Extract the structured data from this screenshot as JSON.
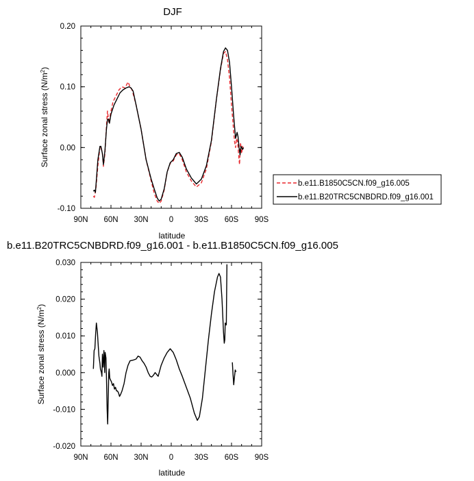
{
  "chart_data": [
    {
      "type": "line",
      "title": "DJF",
      "xlabel": "latitude",
      "ylabel": "Surface zonal stress (N/m",
      "ylabel_sup": "2",
      "ylabel_end": ")",
      "xlim": [
        90,
        -90
      ],
      "ylim": [
        -0.1,
        0.2
      ],
      "x_ticks": [
        90,
        60,
        30,
        0,
        -30,
        -60,
        -90
      ],
      "x_tick_labels": [
        "90N",
        "60N",
        "30N",
        "0",
        "30S",
        "60S",
        "90S"
      ],
      "y_ticks": [
        -0.1,
        0.0,
        0.1,
        0.2
      ],
      "y_tick_labels": [
        "-0.10",
        "0.00",
        "0.10",
        "0.20"
      ],
      "grid": false,
      "legend_position": "right",
      "series": [
        {
          "name": "b.e11.B1850C5CN.f09_g16.005",
          "color": "#e8262b",
          "dash": "dashed",
          "points": [
            [
              77.5,
              -0.08
            ],
            [
              76.5,
              -0.082
            ],
            [
              75,
              -0.068
            ],
            [
              73,
              -0.03
            ],
            [
              71,
              0
            ],
            [
              70,
              0.002
            ],
            [
              68.5,
              -0.01
            ],
            [
              67.5,
              -0.031
            ],
            [
              66,
              -0.01
            ],
            [
              64.5,
              0.035
            ],
            [
              63.5,
              0.06
            ],
            [
              62,
              0.04
            ],
            [
              60.5,
              0.056
            ],
            [
              58,
              0.075
            ],
            [
              55,
              0.085
            ],
            [
              52,
              0.095
            ],
            [
              49,
              0.1
            ],
            [
              46,
              0.098
            ],
            [
              43,
              0.108
            ],
            [
              41,
              0.1
            ],
            [
              39,
              0.095
            ],
            [
              35,
              0.07
            ],
            [
              30,
              0.03
            ],
            [
              25,
              -0.02
            ],
            [
              20,
              -0.055
            ],
            [
              17,
              -0.075
            ],
            [
              14,
              -0.088
            ],
            [
              12,
              -0.092
            ],
            [
              10,
              -0.088
            ],
            [
              7,
              -0.07
            ],
            [
              4,
              -0.04
            ],
            [
              1,
              -0.026
            ],
            [
              -2,
              -0.022
            ],
            [
              -5,
              -0.012
            ],
            [
              -8,
              -0.01
            ],
            [
              -11,
              -0.02
            ],
            [
              -15,
              -0.04
            ],
            [
              -20,
              -0.055
            ],
            [
              -25,
              -0.065
            ],
            [
              -30,
              -0.058
            ],
            [
              -35,
              -0.035
            ],
            [
              -40,
              0.01
            ],
            [
              -45,
              0.08
            ],
            [
              -49,
              0.128
            ],
            [
              -52,
              0.155
            ],
            [
              -54,
              0.158
            ],
            [
              -56,
              0.145
            ],
            [
              -58,
              0.115
            ],
            [
              -60,
              0.07
            ],
            [
              -62,
              0.03
            ],
            [
              -63,
              0.01
            ],
            [
              -64,
              0.0
            ],
            [
              -65,
              0.015
            ],
            [
              -66,
              0.01
            ],
            [
              -67.5,
              -0.02
            ],
            [
              -68,
              -0.028
            ],
            [
              -69,
              0.008
            ],
            [
              -70,
              -0.01
            ],
            [
              -71,
              0.002
            ],
            [
              -72,
              -0.005
            ]
          ]
        },
        {
          "name": "b.e11.B20TRC5CNBDRD.f09_g16.001",
          "color": "#000000",
          "dash": "solid",
          "points": [
            [
              77.5,
              -0.072
            ],
            [
              76.5,
              -0.07
            ],
            [
              75.5,
              -0.074
            ],
            [
              73,
              -0.02
            ],
            [
              71,
              0.002
            ],
            [
              70,
              0.002
            ],
            [
              68.5,
              -0.01
            ],
            [
              67.5,
              -0.028
            ],
            [
              66,
              -0.005
            ],
            [
              64.5,
              0.03
            ],
            [
              63.5,
              0.046
            ],
            [
              62.5,
              0.047
            ],
            [
              61.5,
              0.04
            ],
            [
              60,
              0.055
            ],
            [
              57,
              0.07
            ],
            [
              54,
              0.08
            ],
            [
              51,
              0.09
            ],
            [
              48,
              0.095
            ],
            [
              45,
              0.098
            ],
            [
              42,
              0.1
            ],
            [
              40,
              0.098
            ],
            [
              38,
              0.093
            ],
            [
              35,
              0.07
            ],
            [
              30,
              0.03
            ],
            [
              25,
              -0.02
            ],
            [
              20,
              -0.052
            ],
            [
              17,
              -0.068
            ],
            [
              14,
              -0.083
            ],
            [
              12,
              -0.088
            ],
            [
              10,
              -0.085
            ],
            [
              7,
              -0.068
            ],
            [
              4,
              -0.04
            ],
            [
              1,
              -0.025
            ],
            [
              -2,
              -0.02
            ],
            [
              -5,
              -0.01
            ],
            [
              -8,
              -0.008
            ],
            [
              -11,
              -0.016
            ],
            [
              -15,
              -0.035
            ],
            [
              -20,
              -0.05
            ],
            [
              -25,
              -0.06
            ],
            [
              -30,
              -0.052
            ],
            [
              -35,
              -0.03
            ],
            [
              -40,
              0.012
            ],
            [
              -45,
              0.08
            ],
            [
              -49,
              0.13
            ],
            [
              -52,
              0.158
            ],
            [
              -54,
              0.164
            ],
            [
              -56,
              0.16
            ],
            [
              -58,
              0.14
            ],
            [
              -60,
              0.1
            ],
            [
              -62,
              0.055
            ],
            [
              -63,
              0.035
            ],
            [
              -64,
              0.015
            ],
            [
              -65.5,
              0.025
            ],
            [
              -66.5,
              0.018
            ],
            [
              -67.5,
              0.0
            ],
            [
              -68.5,
              -0.012
            ],
            [
              -69.5,
              0.002
            ],
            [
              -71,
              -0.003
            ],
            [
              -72,
              0.0
            ]
          ]
        }
      ]
    },
    {
      "type": "line",
      "title": "b.e11.B20TRC5CNBDRD.f09_g16.001 - b.e11.B1850C5CN.f09_g16.005",
      "xlabel": "latitude",
      "ylabel": "Surface zonal stress (N/m",
      "ylabel_sup": "2",
      "ylabel_end": ")",
      "xlim": [
        90,
        -90
      ],
      "ylim": [
        -0.02,
        0.03
      ],
      "x_ticks": [
        90,
        60,
        30,
        0,
        -30,
        -60,
        -90
      ],
      "x_tick_labels": [
        "90N",
        "60N",
        "30N",
        "0",
        "30S",
        "60S",
        "90S"
      ],
      "y_ticks": [
        -0.02,
        -0.01,
        0.0,
        0.01,
        0.02,
        0.03
      ],
      "y_tick_labels": [
        "-0.020",
        "-0.010",
        "0.000",
        "0.010",
        "0.020",
        "0.030"
      ],
      "grid": false,
      "series": [
        {
          "color": "#000000",
          "dash": "solid",
          "segments": [
            [
              [
                77.5,
                0.001
              ],
              [
                76.8,
                0.006
              ],
              [
                76,
                0.0065
              ],
              [
                75.3,
                0.0105
              ],
              [
                74.5,
                0.0135
              ],
              [
                73.5,
                0.011
              ],
              [
                72.8,
                0.008
              ],
              [
                72,
                0.0045
              ],
              [
                71,
                0.0025
              ],
              [
                70.5,
                0.001
              ],
              [
                69.5,
                0.0
              ],
              [
                69,
                -0.001
              ],
              [
                68.5,
                0.005
              ],
              [
                67.8,
                0.0015
              ],
              [
                67,
                0.006
              ],
              [
                66.2,
                0.0
              ],
              [
                65.8,
                0.0055
              ],
              [
                65,
                0.004
              ],
              [
                64.5,
                -0.001
              ],
              [
                63.8,
                -0.01
              ],
              [
                63.3,
                -0.014
              ],
              [
                62.8,
                -0.008
              ],
              [
                62.2,
                0.0
              ],
              [
                61.8,
                0.001
              ],
              [
                61.2,
                -0.0015
              ],
              [
                60.5,
                -0.002
              ],
              [
                59.5,
                -0.0025
              ],
              [
                58.5,
                -0.0035
              ],
              [
                57.5,
                -0.003
              ],
              [
                56.5,
                -0.0045
              ],
              [
                55.5,
                -0.004
              ],
              [
                54.5,
                -0.005
              ],
              [
                53.5,
                -0.005
              ],
              [
                52.5,
                -0.0055
              ],
              [
                51.5,
                -0.0065
              ],
              [
                50.5,
                -0.006
              ],
              [
                49,
                -0.005
              ],
              [
                47,
                -0.003
              ],
              [
                45,
                0.0
              ],
              [
                43,
                0.002
              ],
              [
                41,
                0.0032
              ],
              [
                38,
                0.0034
              ],
              [
                35,
                0.0037
              ],
              [
                33,
                0.0045
              ],
              [
                31,
                0.0042
              ],
              [
                29,
                0.0032
              ],
              [
                27,
                0.0025
              ],
              [
                25,
                0.0015
              ],
              [
                23,
                0.0
              ],
              [
                21,
                -0.001
              ],
              [
                19.5,
                -0.0012
              ],
              [
                18,
                -0.0008
              ],
              [
                16,
                0.0
              ],
              [
                13,
                -0.001
              ],
              [
                10,
                0.002
              ],
              [
                7,
                0.004
              ],
              [
                4,
                0.0055
              ],
              [
                1,
                0.0065
              ],
              [
                -2,
                0.0055
              ],
              [
                -5,
                0.0035
              ],
              [
                -8,
                0.001
              ],
              [
                -11,
                -0.001
              ],
              [
                -15,
                -0.004
              ],
              [
                -19,
                -0.007
              ],
              [
                -23,
                -0.011
              ],
              [
                -26,
                -0.013
              ],
              [
                -28,
                -0.012
              ],
              [
                -31,
                -0.007
              ],
              [
                -34,
                0.001
              ],
              [
                -37,
                0.009
              ],
              [
                -40,
                0.016
              ],
              [
                -43,
                0.022
              ],
              [
                -46,
                0.026
              ],
              [
                -47.5,
                0.027
              ],
              [
                -49,
                0.026
              ],
              [
                -50.5,
                0.02
              ],
              [
                -52,
                0.011
              ],
              [
                -52.8,
                0.008
              ],
              [
                -53.3,
                0.009
              ],
              [
                -53.7,
                0.0135
              ],
              [
                -54.2,
                0.013
              ],
              [
                -54.8,
                0.013
              ],
              [
                -55.4,
                0.0295
              ]
            ],
            [
              [
                -60.8,
                0.0028
              ],
              [
                -61.5,
                -0.0005
              ],
              [
                -62.2,
                -0.0033
              ],
              [
                -63,
                -0.001
              ],
              [
                -63.7,
                0.0007
              ],
              [
                -64.5,
                0.0002
              ]
            ]
          ]
        }
      ]
    }
  ],
  "legend": {
    "entries": [
      {
        "label": "b.e11.B1850C5CN.f09_g16.005",
        "color": "#e8262b",
        "dash": "dashed"
      },
      {
        "label": "b.e11.B20TRC5CNBDRD.f09_g16.001",
        "color": "#000000",
        "dash": "solid"
      }
    ]
  }
}
